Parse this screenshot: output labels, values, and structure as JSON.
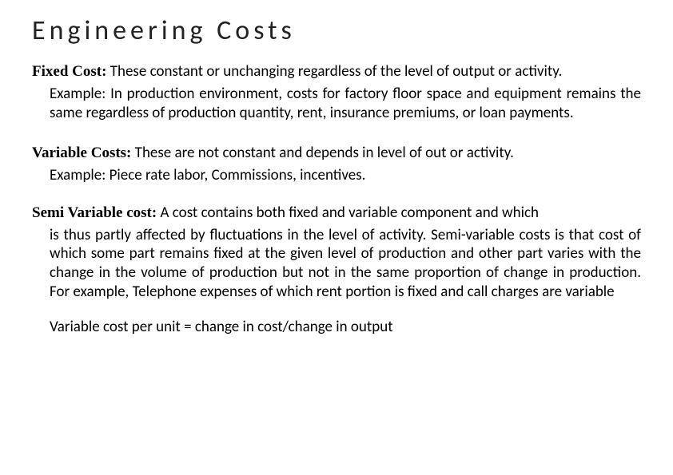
{
  "title": "Engineering Costs",
  "fixed": {
    "label": "Fixed Cost:",
    "rest": " These constant or unchanging regardless of the level of output or activity.",
    "example": "Example: In production environment, costs for factory floor space and equipment remains the same regardless of production quantity, rent, insurance premiums, or loan payments."
  },
  "variable": {
    "label": "Variable Costs:",
    "rest": " These are not constant and depends in level of out or activity.",
    "example": "Example: Piece rate labor, Commissions, incentives."
  },
  "semi": {
    "label": "Semi Variable cost:",
    "rest": " A cost contains both fixed and variable component and which",
    "body": "is thus partly affected by fluctuations in the level of activity. Semi-variable costs is that cost of which some part remains fixed at the given level of production and other part varies with the change in the volume of production but not in the same proportion of change in production. For example, Telephone expenses of which rent portion is fixed and call charges are variable",
    "formula": "Variable cost per unit = change in cost/change in output"
  }
}
